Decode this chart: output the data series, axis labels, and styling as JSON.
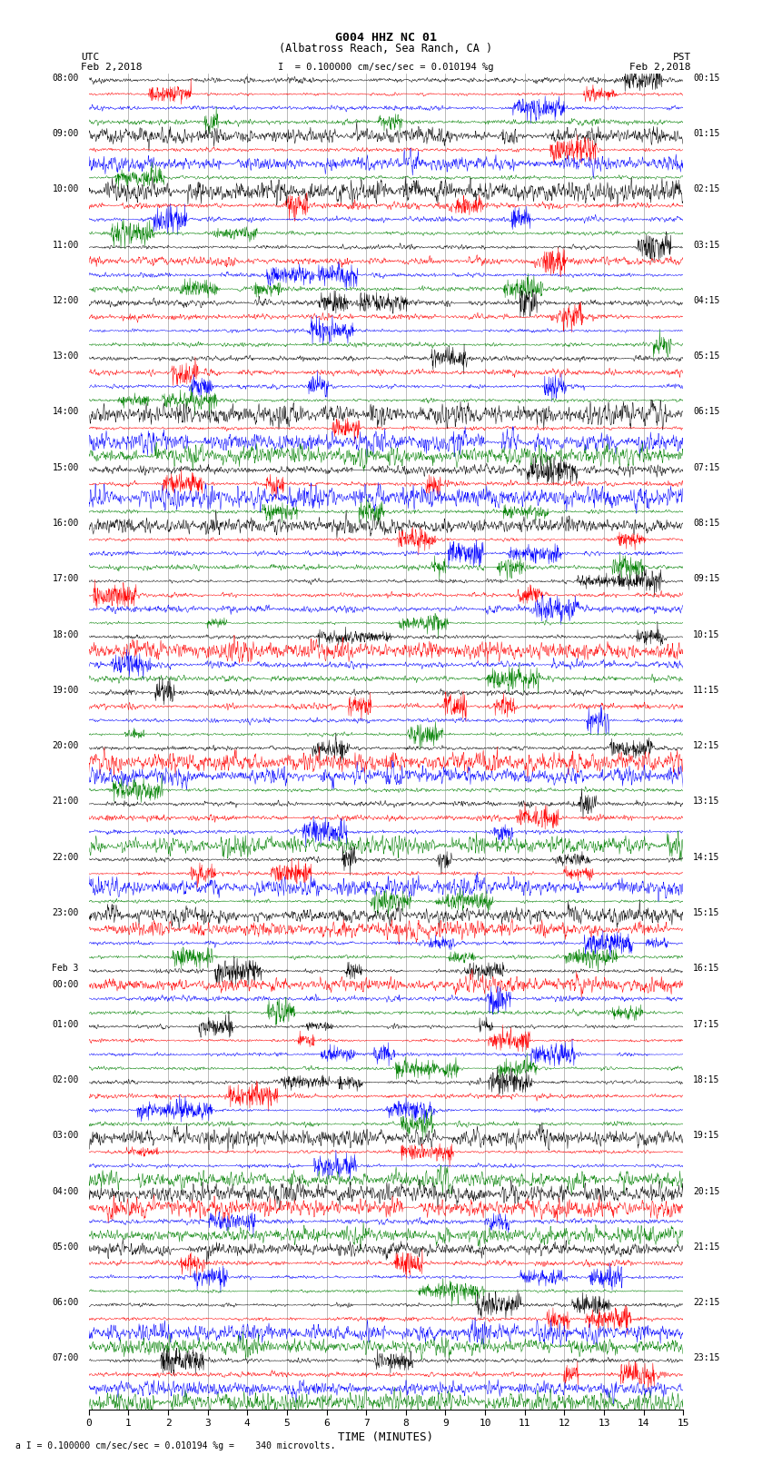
{
  "title_line1": "G004 HHZ NC 01",
  "title_line2": "(Albatross Reach, Sea Ranch, CA )",
  "scale_text": "= 0.100000 cm/sec/sec = 0.010194 %g",
  "bottom_note": "a I = 0.100000 cm/sec/sec = 0.010194 %g =    340 microvolts.",
  "utc_label": "UTC",
  "pst_label": "PST",
  "date_left": "Feb 2,2018",
  "date_right": "Feb 2,2018",
  "xlabel": "TIME (MINUTES)",
  "colors": [
    "black",
    "red",
    "blue",
    "green"
  ],
  "left_labels_utc": [
    "08:00",
    "09:00",
    "10:00",
    "11:00",
    "12:00",
    "13:00",
    "14:00",
    "15:00",
    "16:00",
    "17:00",
    "18:00",
    "19:00",
    "20:00",
    "21:00",
    "22:00",
    "23:00",
    "00:00",
    "01:00",
    "02:00",
    "03:00",
    "04:00",
    "05:00",
    "06:00",
    "07:00"
  ],
  "feb3_hour_idx": 16,
  "right_labels_pst": [
    "00:15",
    "01:15",
    "02:15",
    "03:15",
    "04:15",
    "05:15",
    "06:15",
    "07:15",
    "08:15",
    "09:15",
    "10:15",
    "11:15",
    "12:15",
    "13:15",
    "14:15",
    "15:15",
    "16:15",
    "17:15",
    "18:15",
    "19:15",
    "20:15",
    "21:15",
    "22:15",
    "23:15"
  ],
  "xticks": [
    0,
    1,
    2,
    3,
    4,
    5,
    6,
    7,
    8,
    9,
    10,
    11,
    12,
    13,
    14,
    15
  ],
  "background_color": "white",
  "trace_amplitude": 0.28,
  "noise_seed": 42,
  "num_samples": 1800,
  "fig_width": 8.5,
  "fig_height": 16.13,
  "dpi": 100
}
